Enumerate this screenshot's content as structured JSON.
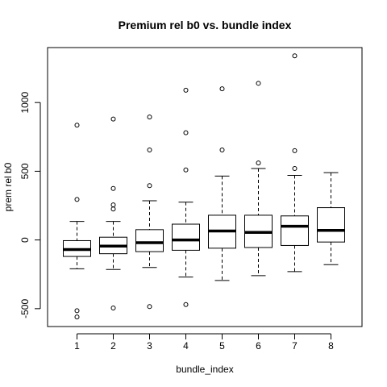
{
  "chart_data": {
    "type": "boxplot",
    "title": "Premium rel b0 vs. bundle index",
    "xlabel": "bundle_index",
    "ylabel": "prem rel b0",
    "categories": [
      "1",
      "2",
      "3",
      "4",
      "5",
      "6",
      "7",
      "8"
    ],
    "ylim": [
      -630,
      1400
    ],
    "yticks": [
      -500,
      0,
      500,
      1000
    ],
    "ytick_labels": [
      "-500",
      "0",
      "500",
      "1000"
    ],
    "grid": false,
    "boxes": [
      {
        "category": "1",
        "min": -210,
        "q1": -120,
        "median": -70,
        "q3": -5,
        "max": 135,
        "outliers": [
          835,
          295,
          -515,
          -560
        ]
      },
      {
        "category": "2",
        "min": -215,
        "q1": -100,
        "median": -45,
        "q3": 20,
        "max": 135,
        "outliers": [
          880,
          375,
          255,
          225,
          -495
        ]
      },
      {
        "category": "3",
        "min": -200,
        "q1": -85,
        "median": -20,
        "q3": 75,
        "max": 285,
        "outliers": [
          895,
          655,
          395,
          -485
        ]
      },
      {
        "category": "4",
        "min": -270,
        "q1": -75,
        "median": 0,
        "q3": 115,
        "max": 275,
        "outliers": [
          1090,
          780,
          510,
          -470
        ]
      },
      {
        "category": "5",
        "min": -295,
        "q1": -60,
        "median": 65,
        "q3": 180,
        "max": 465,
        "outliers": [
          1100,
          655
        ]
      },
      {
        "category": "6",
        "min": -260,
        "q1": -55,
        "median": 55,
        "q3": 180,
        "max": 520,
        "outliers": [
          1140,
          560
        ]
      },
      {
        "category": "7",
        "min": -230,
        "q1": -40,
        "median": 100,
        "q3": 175,
        "max": 470,
        "outliers": [
          1340,
          650,
          520
        ]
      },
      {
        "category": "8",
        "min": -180,
        "q1": -15,
        "median": 70,
        "q3": 235,
        "max": 490,
        "outliers": []
      }
    ]
  }
}
